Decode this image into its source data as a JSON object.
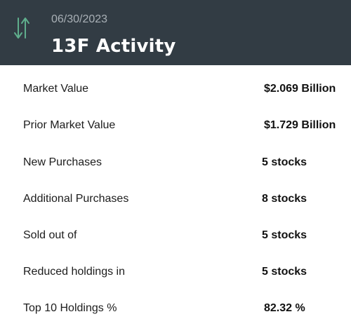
{
  "header": {
    "date": "06/30/2023",
    "title": "13F Activity",
    "icon": "up-down-arrows-icon",
    "accent_color": "#5fae8c",
    "background_color": "#323c44"
  },
  "rows": [
    {
      "label": "Market Value",
      "value": "$2.069 Billion"
    },
    {
      "label": "Prior Market Value",
      "value": "$1.729 Billion"
    },
    {
      "label": "New Purchases",
      "value": "5 stocks"
    },
    {
      "label": "Additional Purchases",
      "value": "8 stocks"
    },
    {
      "label": "Sold out of",
      "value": "5 stocks"
    },
    {
      "label": "Reduced holdings in",
      "value": "5 stocks"
    },
    {
      "label": "Top 10 Holdings %",
      "value": "82.32 %"
    }
  ]
}
